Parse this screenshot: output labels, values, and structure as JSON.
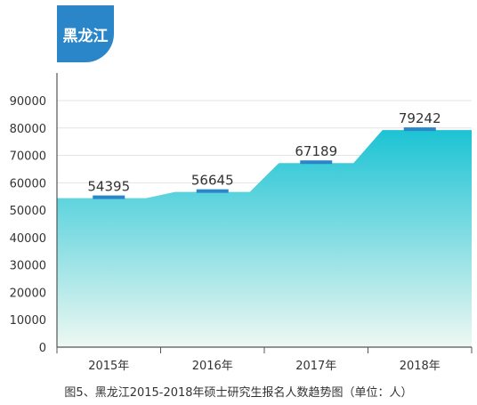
{
  "badge": {
    "title": "黑龙江"
  },
  "caption": "图5、黑龙江2015-2018年硕士研究生报名人数趋势图（单位：人）",
  "colors": {
    "area_top": "#1cc3d4",
    "area_bottom": "#eef8f2",
    "marker": "#2a86c9",
    "badge": "#2a86c9"
  },
  "chart_data": {
    "type": "area",
    "categories": [
      "2015年",
      "2016年",
      "2017年",
      "2018年"
    ],
    "values": [
      54395,
      56645,
      67189,
      79242
    ],
    "data_labels": [
      "54395",
      "56645",
      "67189",
      "79242"
    ],
    "ylim": [
      0,
      90000
    ],
    "yticks": [
      0,
      10000,
      20000,
      30000,
      40000,
      50000,
      60000,
      70000,
      80000,
      90000
    ],
    "grid": true,
    "title": "",
    "xlabel": "",
    "ylabel": ""
  }
}
